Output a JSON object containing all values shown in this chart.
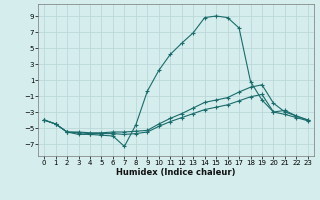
{
  "xlabel": "Humidex (Indice chaleur)",
  "xlim": [
    -0.5,
    23.5
  ],
  "ylim": [
    -8.5,
    10.5
  ],
  "yticks": [
    -7,
    -5,
    -3,
    -1,
    1,
    3,
    5,
    7,
    9
  ],
  "xticks": [
    0,
    1,
    2,
    3,
    4,
    5,
    6,
    7,
    8,
    9,
    10,
    11,
    12,
    13,
    14,
    15,
    16,
    17,
    18,
    19,
    20,
    21,
    22,
    23
  ],
  "bg_color": "#d6eded",
  "grid_color": "#bbd8d8",
  "line_color": "#1a6b6b",
  "line1_x": [
    0,
    1,
    2,
    3,
    4,
    5,
    6,
    7,
    8,
    9,
    10,
    11,
    12,
    13,
    14,
    15,
    16,
    17,
    18,
    19,
    20,
    21,
    22,
    23
  ],
  "line1_y": [
    -4.0,
    -4.5,
    -5.5,
    -5.8,
    -5.8,
    -5.9,
    -6.0,
    -7.3,
    -4.6,
    -0.4,
    2.2,
    4.2,
    5.6,
    6.9,
    8.8,
    9.0,
    8.8,
    7.5,
    0.8,
    -1.5,
    -3.0,
    -2.8,
    -3.5,
    -4.0
  ],
  "line2_x": [
    0,
    1,
    2,
    3,
    4,
    5,
    6,
    7,
    8,
    9,
    10,
    11,
    12,
    13,
    14,
    15,
    16,
    17,
    18,
    19,
    20,
    21,
    22,
    23
  ],
  "line2_y": [
    -4.0,
    -4.5,
    -5.5,
    -5.6,
    -5.7,
    -5.7,
    -5.7,
    -5.8,
    -5.7,
    -5.5,
    -4.8,
    -4.2,
    -3.7,
    -3.2,
    -2.7,
    -2.4,
    -2.1,
    -1.6,
    -1.1,
    -0.8,
    -3.0,
    -3.3,
    -3.7,
    -4.1
  ],
  "line3_x": [
    0,
    1,
    2,
    3,
    4,
    5,
    6,
    7,
    8,
    9,
    10,
    11,
    12,
    13,
    14,
    15,
    16,
    17,
    18,
    19,
    20,
    21,
    22,
    23
  ],
  "line3_y": [
    -4.0,
    -4.5,
    -5.5,
    -5.5,
    -5.6,
    -5.6,
    -5.5,
    -5.5,
    -5.4,
    -5.3,
    -4.5,
    -3.8,
    -3.2,
    -2.5,
    -1.8,
    -1.5,
    -1.2,
    -0.5,
    0.1,
    0.4,
    -1.9,
    -3.0,
    -3.5,
    -4.0
  ]
}
